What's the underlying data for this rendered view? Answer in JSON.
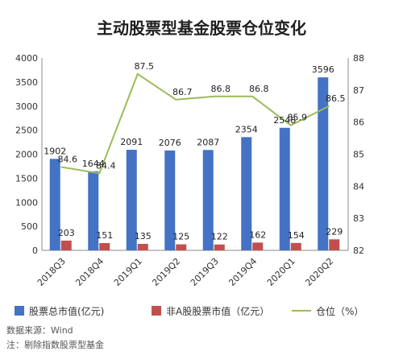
{
  "chart_data": {
    "type": "bar",
    "title": "主动股票型基金股票仓位变化",
    "categories": [
      "2018Q3",
      "2018Q4",
      "2019Q1",
      "2019Q2",
      "2019Q3",
      "2019Q4",
      "2020Q1",
      "2020Q2"
    ],
    "series": [
      {
        "name": "股票总市值(亿元)",
        "type": "bar",
        "axis": "left",
        "color": "#4472C4",
        "values": [
          1902,
          1644,
          2091,
          2076,
          2087,
          2354,
          2548,
          3596
        ]
      },
      {
        "name": "非A股股票市值（亿元）",
        "type": "bar",
        "axis": "left",
        "color": "#C0504D",
        "values": [
          203,
          151,
          135,
          125,
          122,
          162,
          154,
          229
        ]
      },
      {
        "name": "仓位（%）",
        "type": "line",
        "axis": "right",
        "color": "#9BBB59",
        "values": [
          84.6,
          84.4,
          87.5,
          86.7,
          86.8,
          86.8,
          85.9,
          86.5
        ]
      }
    ],
    "yleft": {
      "min": 0,
      "max": 4000,
      "step": 500,
      "ticks": [
        "0",
        "500",
        "1000",
        "1500",
        "2000",
        "2500",
        "3000",
        "3500",
        "4000"
      ]
    },
    "yright": {
      "min": 82,
      "max": 88,
      "step": 1,
      "ticks": [
        "82",
        "83",
        "84",
        "85",
        "86",
        "87",
        "88"
      ]
    },
    "grid": false,
    "legend_position": "bottom"
  },
  "footnotes": {
    "source": "数据来源：Wind",
    "note": "注：剔除指数股票型基金"
  }
}
